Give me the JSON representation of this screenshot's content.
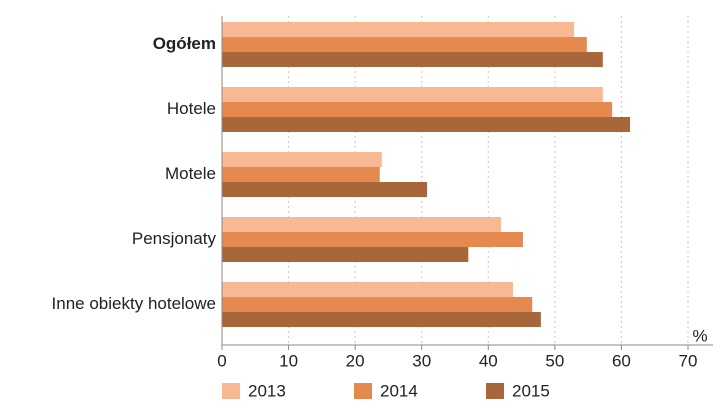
{
  "chart_data": {
    "type": "hbar",
    "categories": [
      "Ogółem",
      "Hotele",
      "Motele",
      "Pensjonaty",
      "Inne obiekty hotelowe"
    ],
    "series": [
      {
        "name": "2013",
        "color": "#f9b894",
        "values": [
          52.9,
          57.2,
          24.0,
          41.9,
          43.7
        ]
      },
      {
        "name": "2014",
        "color": "#e5894f",
        "values": [
          54.8,
          58.6,
          23.7,
          45.2,
          46.6
        ]
      },
      {
        "name": "2015",
        "color": "#a8673a",
        "values": [
          57.2,
          61.3,
          30.8,
          37.0,
          47.9
        ]
      }
    ],
    "x_unit": "%",
    "xlim": [
      0,
      70
    ],
    "xticks": [
      0,
      10,
      20,
      30,
      40,
      50,
      60,
      70
    ],
    "grid": true,
    "legend": "bottom"
  }
}
